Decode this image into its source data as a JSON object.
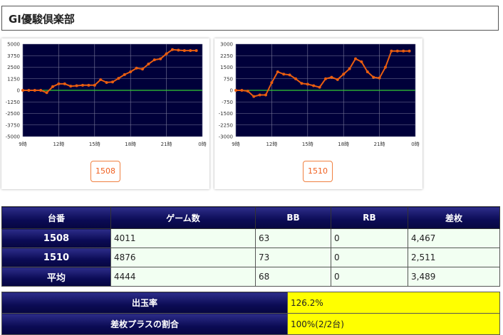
{
  "page_title": "GI優駿倶楽部",
  "charts": [
    {
      "machine_label": "1508",
      "y_ticks": [
        "5000",
        "3750",
        "2500",
        "1250",
        "0",
        "-1250",
        "-2500",
        "-3750",
        "-5000"
      ],
      "x_ticks": [
        "9時",
        "12時",
        "15時",
        "18時",
        "21時",
        "0時"
      ]
    },
    {
      "machine_label": "1510",
      "y_ticks": [
        "3000",
        "2250",
        "1500",
        "750",
        "0",
        "-750",
        "-1500",
        "-2250",
        "-3000"
      ],
      "x_ticks": [
        "9時",
        "12時",
        "15時",
        "18時",
        "21時",
        "0時"
      ]
    }
  ],
  "chart_data": [
    {
      "type": "line",
      "title": "1508",
      "x": [
        9,
        9.5,
        10,
        10.5,
        11,
        11.5,
        12,
        12.5,
        13,
        13.5,
        14,
        14.5,
        15,
        15.5,
        16,
        16.5,
        17,
        17.5,
        18,
        18.5,
        19,
        19.5,
        20,
        20.5,
        21,
        21.5,
        22,
        22.5,
        23,
        23.5
      ],
      "y": [
        0,
        0,
        0,
        0,
        -250,
        400,
        700,
        700,
        450,
        500,
        550,
        550,
        550,
        1150,
        850,
        900,
        1300,
        1700,
        2000,
        2400,
        2300,
        2850,
        3300,
        3400,
        3950,
        4400,
        4350,
        4300,
        4300,
        4300
      ],
      "xlim": [
        9,
        24
      ],
      "ylim": [
        -5000,
        5000
      ],
      "colors": {
        "line": "#e85d10",
        "plot_bg": "#00003a",
        "zero_line": "#33cc33",
        "grid": "#7a7a9a"
      }
    },
    {
      "type": "line",
      "title": "1510",
      "x": [
        9,
        9.5,
        10,
        10.5,
        11,
        11.5,
        12,
        12.5,
        13,
        13.5,
        14,
        14.5,
        15,
        15.5,
        16,
        16.5,
        17,
        17.5,
        18,
        18.5,
        19,
        19.5,
        20,
        20.5,
        21,
        21.5,
        22,
        22.5,
        23,
        23.5
      ],
      "y": [
        0,
        0,
        -50,
        -400,
        -300,
        -300,
        500,
        1200,
        1050,
        1000,
        750,
        450,
        400,
        300,
        200,
        750,
        850,
        700,
        1050,
        1400,
        2050,
        1850,
        1200,
        850,
        800,
        1500,
        2550,
        2550,
        2550,
        2550
      ],
      "xlim": [
        9,
        24
      ],
      "ylim": [
        -3000,
        3000
      ],
      "colors": {
        "line": "#e85d10",
        "plot_bg": "#00003a",
        "zero_line": "#33cc33",
        "grid": "#7a7a9a"
      }
    }
  ],
  "table": {
    "headers": [
      "台番",
      "ゲーム数",
      "BB",
      "RB",
      "差枚"
    ],
    "rows": [
      {
        "label": "1508",
        "games": "4011",
        "bb": "63",
        "rb": "0",
        "diff": "4,467"
      },
      {
        "label": "1510",
        "games": "4876",
        "bb": "73",
        "rb": "0",
        "diff": "2,511"
      },
      {
        "label": "平均",
        "games": "4444",
        "bb": "68",
        "rb": "0",
        "diff": "3,489"
      }
    ]
  },
  "summary": {
    "payout_label": "出玉率",
    "payout_value": "126.2%",
    "plus_ratio_label": "差枚プラスの割合",
    "plus_ratio_value": "100%(2/2台)"
  }
}
